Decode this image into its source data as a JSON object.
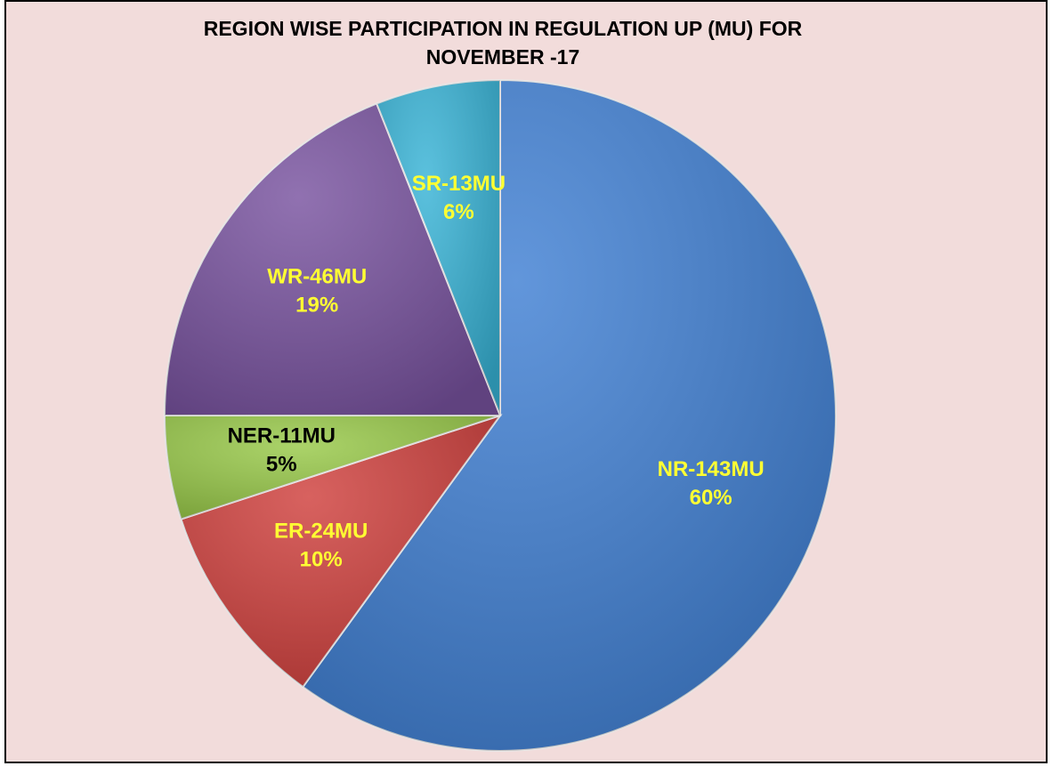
{
  "chart_data": {
    "type": "pie",
    "title": [
      "REGION WISE PARTICIPATION IN REGULATION UP (MU) FOR",
      "NOVEMBER -17"
    ],
    "categories": [
      "NR-143MU",
      "ER-24MU",
      "NER-11MU",
      "WR-46MU",
      "SR-13MU"
    ],
    "values": [
      60,
      10,
      5,
      19,
      6
    ],
    "value_labels": [
      "60%",
      "10%",
      "5%",
      "19%",
      "6%"
    ],
    "colors": [
      "#3f7fd3",
      "#cf3f3c",
      "#98c948",
      "#78529f",
      "#37b3d6"
    ],
    "label_colors": [
      "#ffff33",
      "#ffff33",
      "#000000",
      "#ffff33",
      "#ffff33"
    ]
  }
}
